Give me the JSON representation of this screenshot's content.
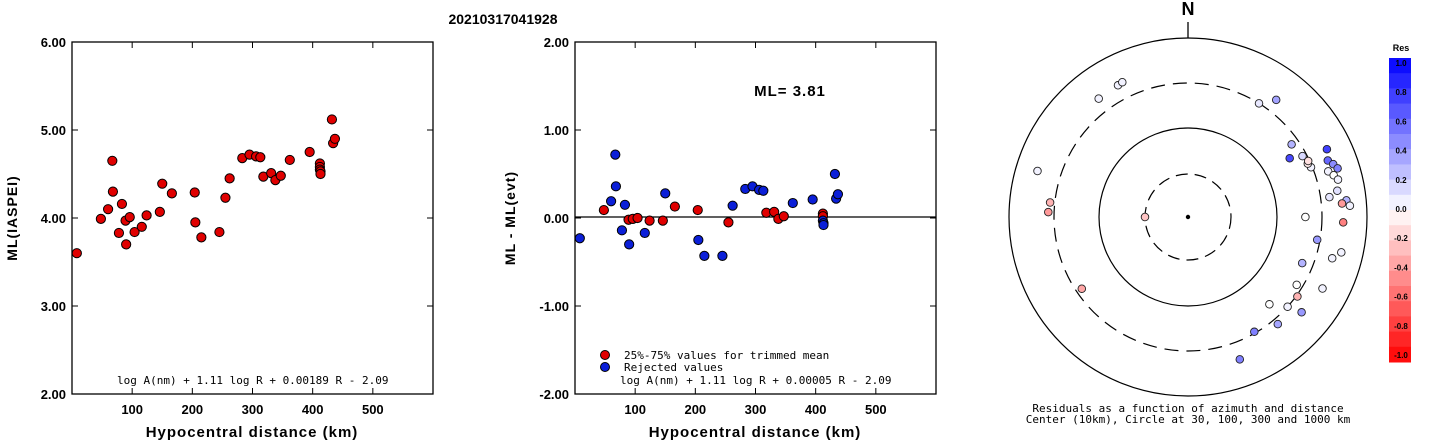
{
  "title": "20210317041928",
  "colors": {
    "accepted": "#e00000",
    "rejected": "#0b1fd8",
    "marker_edge": "#000000"
  },
  "chart_data": [
    {
      "type": "scatter",
      "xlabel": "Hypocentral distance (km)",
      "ylabel": "ML(IASPEI)",
      "xlim": [
        0,
        600
      ],
      "ylim": [
        2.0,
        6.0
      ],
      "x_ticks": [
        "100",
        "200",
        "300",
        "400",
        "500"
      ],
      "y_ticks": [
        "2.00",
        "3.00",
        "4.00",
        "5.00",
        "6.00"
      ],
      "formula": "log A(nm) + 1.11 log R + 0.00189 R - 2.09",
      "series": [
        {
          "points": [
            [
              8,
              3.6
            ],
            [
              48,
              3.99
            ],
            [
              60,
              4.1
            ],
            [
              67,
              4.65
            ],
            [
              68,
              4.3
            ],
            [
              78,
              3.83
            ],
            [
              83,
              4.16
            ],
            [
              89,
              3.97
            ],
            [
              90,
              3.7
            ],
            [
              96,
              4.01
            ],
            [
              104,
              3.84
            ],
            [
              116,
              3.9
            ],
            [
              124,
              4.03
            ],
            [
              146,
              4.07
            ],
            [
              150,
              4.39
            ],
            [
              166,
              4.28
            ],
            [
              204,
              4.29
            ],
            [
              205,
              3.95
            ],
            [
              215,
              3.78
            ],
            [
              245,
              3.84
            ],
            [
              255,
              4.23
            ],
            [
              262,
              4.45
            ],
            [
              283,
              4.68
            ],
            [
              295,
              4.72
            ],
            [
              306,
              4.7
            ],
            [
              313,
              4.69
            ],
            [
              318,
              4.47
            ],
            [
              331,
              4.51
            ],
            [
              338,
              4.43
            ],
            [
              347,
              4.48
            ],
            [
              362,
              4.66
            ],
            [
              395,
              4.75
            ],
            [
              412,
              4.62
            ],
            [
              412,
              4.58
            ],
            [
              412,
              4.55
            ],
            [
              413,
              4.53
            ],
            [
              413,
              4.5
            ],
            [
              432,
              5.12
            ],
            [
              434,
              4.85
            ],
            [
              437,
              4.9
            ]
          ]
        }
      ]
    },
    {
      "type": "scatter",
      "xlabel": "Hypocentral distance (km)",
      "ylabel": "ML - ML(evt)",
      "xlim": [
        0,
        600
      ],
      "ylim": [
        -2.0,
        2.0
      ],
      "x_ticks": [
        "100",
        "200",
        "300",
        "400",
        "500"
      ],
      "y_ticks": [
        "-2.00",
        "-1.00",
        "0.00",
        "1.00",
        "2.00"
      ],
      "annotation": "ML= 3.81",
      "formula": "log A(nm) + 1.11 log R + 0.00005 R - 2.09",
      "legend": [
        "25%-75% values for trimmed mean",
        "Rejected values"
      ],
      "series": [
        {
          "name": "25%-75% values for trimmed mean",
          "points": [
            [
              48,
              0.09
            ],
            [
              89,
              -0.02
            ],
            [
              96,
              -0.01
            ],
            [
              104,
              0.0
            ],
            [
              124,
              -0.03
            ],
            [
              146,
              -0.03
            ],
            [
              166,
              0.13
            ],
            [
              204,
              0.09
            ],
            [
              255,
              -0.05
            ],
            [
              318,
              0.06
            ],
            [
              331,
              0.07
            ],
            [
              338,
              -0.01
            ],
            [
              347,
              0.02
            ],
            [
              412,
              0.05
            ],
            [
              412,
              0.02
            ]
          ]
        },
        {
          "name": "Rejected values",
          "points": [
            [
              8,
              -0.23
            ],
            [
              60,
              0.19
            ],
            [
              67,
              0.72
            ],
            [
              68,
              0.36
            ],
            [
              78,
              -0.14
            ],
            [
              83,
              0.15
            ],
            [
              90,
              -0.3
            ],
            [
              116,
              -0.17
            ],
            [
              150,
              0.28
            ],
            [
              205,
              -0.25
            ],
            [
              215,
              -0.43
            ],
            [
              245,
              -0.43
            ],
            [
              262,
              0.14
            ],
            [
              283,
              0.33
            ],
            [
              295,
              0.36
            ],
            [
              306,
              0.32
            ],
            [
              313,
              0.31
            ],
            [
              362,
              0.17
            ],
            [
              395,
              0.21
            ],
            [
              412,
              -0.03
            ],
            [
              413,
              -0.06
            ],
            [
              413,
              -0.08
            ],
            [
              432,
              0.5
            ],
            [
              434,
              0.22
            ],
            [
              437,
              0.27
            ]
          ]
        }
      ]
    },
    {
      "type": "scatter",
      "subtype": "polar residual plot",
      "north_label": "N",
      "caption": [
        "Residuals as a function of azimuth and distance",
        "Center (10km), Circle at 30, 100, 300 and 1000 km"
      ],
      "colorbar": {
        "title": "Res",
        "labels": [
          "1.0",
          "0.8",
          "0.6",
          "0.4",
          "0.2",
          "0.0",
          "-0.2",
          "-0.4",
          "-0.6",
          "-0.8",
          "-1.0"
        ],
        "range": [
          -1.0,
          1.0
        ]
      },
      "points": [
        {
          "azimuth": 270,
          "distance": 30,
          "residual": -0.23
        },
        {
          "azimuth": 32,
          "distance": 300,
          "residual": 0.09
        },
        {
          "azimuth": 37,
          "distance": 420,
          "residual": 0.36
        },
        {
          "azimuth": 60,
          "distance": 200,
          "residual": 0.72
        },
        {
          "azimuth": 55,
          "distance": 250,
          "residual": 0.3
        },
        {
          "azimuth": 62,
          "distance": 270,
          "residual": 0.15
        },
        {
          "azimuth": 68,
          "distance": 290,
          "residual": 0.05
        },
        {
          "azimuth": 64,
          "distance": 520,
          "residual": 0.75
        },
        {
          "azimuth": 68,
          "distance": 470,
          "residual": 0.6
        },
        {
          "azimuth": 70,
          "distance": 520,
          "residual": 0.45
        },
        {
          "azimuth": 72,
          "distance": 560,
          "residual": 0.5
        },
        {
          "azimuth": 72,
          "distance": 430,
          "residual": 0.05
        },
        {
          "azimuth": 74,
          "distance": 480,
          "residual": 0.0
        },
        {
          "azimuth": 66,
          "distance": 280,
          "residual": -0.08
        },
        {
          "azimuth": 65,
          "distance": 290,
          "residual": -0.12
        },
        {
          "azimuth": 76,
          "distance": 520,
          "residual": 0.05
        },
        {
          "azimuth": 80,
          "distance": 480,
          "residual": 0.12
        },
        {
          "azimuth": 82,
          "distance": 380,
          "residual": 0.1
        },
        {
          "azimuth": 84,
          "distance": 590,
          "residual": 0.3
        },
        {
          "azimuth": 85,
          "distance": 520,
          "residual": -0.4
        },
        {
          "azimuth": 86,
          "distance": 640,
          "residual": 0.05
        },
        {
          "azimuth": 90,
          "distance": 200,
          "residual": 0.0
        },
        {
          "azimuth": 92,
          "distance": 530,
          "residual": -0.5
        },
        {
          "azimuth": 100,
          "distance": 280,
          "residual": 0.4
        },
        {
          "azimuth": 103,
          "distance": 560,
          "residual": 0.05
        },
        {
          "azimuth": 106,
          "distance": 460,
          "residual": 0.05
        },
        {
          "azimuth": 112,
          "distance": 230,
          "residual": 0.3
        },
        {
          "azimuth": 118,
          "distance": 490,
          "residual": 0.05
        },
        {
          "azimuth": 122,
          "distance": 260,
          "residual": 0.0
        },
        {
          "azimuth": 126,
          "distance": 310,
          "residual": -0.3
        },
        {
          "azimuth": 130,
          "distance": 440,
          "residual": 0.4
        },
        {
          "azimuth": 132,
          "distance": 300,
          "residual": 0.05
        },
        {
          "azimuth": 137,
          "distance": 210,
          "residual": 0.0
        },
        {
          "azimuth": 140,
          "distance": 350,
          "residual": 0.35
        },
        {
          "azimuth": 150,
          "distance": 290,
          "residual": 0.5
        },
        {
          "azimuth": 160,
          "distance": 480,
          "residual": 0.5
        },
        {
          "azimuth": 236,
          "distance": 260,
          "residual": -0.35
        },
        {
          "azimuth": 272,
          "distance": 350,
          "residual": -0.4
        },
        {
          "azimuth": 276,
          "distance": 340,
          "residual": -0.3
        },
        {
          "azimuth": 287,
          "distance": 560,
          "residual": 0.05
        },
        {
          "azimuth": 323,
          "distance": 440,
          "residual": 0.05
        },
        {
          "azimuth": 332,
          "distance": 450,
          "residual": 0.05
        },
        {
          "azimuth": 334,
          "distance": 460,
          "residual": 0.05
        }
      ]
    }
  ]
}
